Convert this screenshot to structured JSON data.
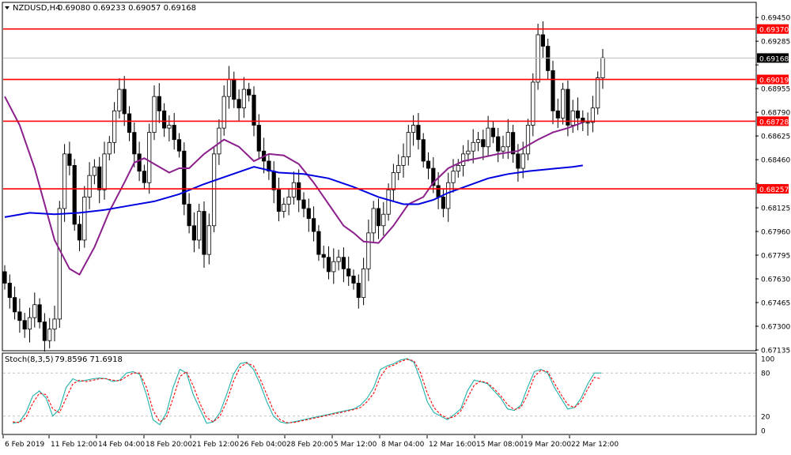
{
  "header": {
    "symbol_label": "NZDUSD,H4",
    "ohlc_text": "0.69080 0.69233 0.69057 0.69168"
  },
  "stoch_header": {
    "label": "Stoch(8,3,5)",
    "values_text": "79.8596 71.6918"
  },
  "colors": {
    "background": "#ffffff",
    "candle": "#000000",
    "support_resistance": "#ff0000",
    "ma_fast": "#8b1f8b",
    "ma_slow": "#0000e0",
    "stoch_main": "#20b2aa",
    "stoch_signal": "#ff0000",
    "grid": "#c0c0c0"
  },
  "chart_data": [
    {
      "type": "candlestick",
      "title": "NZDUSD,H4",
      "ohlc_last": {
        "open": 0.6908,
        "high": 0.69233,
        "low": 0.69057,
        "close": 0.69168
      },
      "ylim": [
        0.67135,
        0.6955
      ],
      "y_ticks": [
        "0.69450",
        "0.69285",
        "0.69120",
        "0.68955",
        "0.68790",
        "0.68625",
        "0.68460",
        "0.68295",
        "0.68125",
        "0.67960",
        "0.67795",
        "0.67630",
        "0.67465",
        "0.67300",
        "0.67135"
      ],
      "horizontal_lines": [
        {
          "label": "0.69370",
          "value": 0.6937
        },
        {
          "label": "0.69019",
          "value": 0.69019
        },
        {
          "label": "0.68728",
          "value": 0.68728
        },
        {
          "label": "0.68257",
          "value": 0.68257
        }
      ],
      "current_price": {
        "label": "0.69168",
        "value": 0.69168
      },
      "x_labels": [
        "6 Feb 2019",
        "11 Feb 12:00",
        "14 Feb 04:00",
        "18 Feb 20:00",
        "21 Feb 12:00",
        "26 Feb 04:00",
        "28 Feb 20:00",
        "5 Mar 12:00",
        "8 Mar 04:00",
        "12 Mar 16:00",
        "15 Mar 08:00",
        "19 Mar 20:00",
        "22 Mar 12:00"
      ],
      "close_path": [
        0.676,
        0.675,
        0.674,
        0.6734,
        0.6728,
        0.6736,
        0.6745,
        0.6733,
        0.672,
        0.6728,
        0.6735,
        0.6812,
        0.685,
        0.6842,
        0.6801,
        0.679,
        0.682,
        0.6835,
        0.6841,
        0.6825,
        0.685,
        0.6858,
        0.688,
        0.6895,
        0.6878,
        0.6865,
        0.685,
        0.6838,
        0.683,
        0.6865,
        0.689,
        0.688,
        0.6868,
        0.687,
        0.686,
        0.6852,
        0.6815,
        0.68,
        0.679,
        0.681,
        0.678,
        0.68,
        0.685,
        0.6868,
        0.689,
        0.6902,
        0.6888,
        0.6882,
        0.6895,
        0.6891,
        0.687,
        0.6852,
        0.6845,
        0.6838,
        0.6825,
        0.681,
        0.6815,
        0.682,
        0.683,
        0.6818,
        0.6812,
        0.6805,
        0.6796,
        0.678,
        0.6778,
        0.6768,
        0.6775,
        0.6778,
        0.677,
        0.6765,
        0.676,
        0.675,
        0.677,
        0.6795,
        0.6812,
        0.68,
        0.6808,
        0.6825,
        0.6837,
        0.6842,
        0.6848,
        0.6865,
        0.687,
        0.686,
        0.6845,
        0.684,
        0.6828,
        0.682,
        0.6812,
        0.683,
        0.6838,
        0.6842,
        0.685,
        0.6852,
        0.6858,
        0.686,
        0.6855,
        0.6868,
        0.6862,
        0.6852,
        0.6855,
        0.6865,
        0.685,
        0.684,
        0.685,
        0.687,
        0.69,
        0.6933,
        0.6925,
        0.6908,
        0.688,
        0.6875,
        0.6895,
        0.687,
        0.688,
        0.6875,
        0.6872,
        0.6872,
        0.6882,
        0.6903,
        0.6917
      ],
      "overlays": [
        {
          "name": "",
          "color": "#8b1f8b",
          "points": [
            [
              0,
              0.689
            ],
            [
              3,
              0.687
            ],
            [
              6,
              0.684
            ],
            [
              10,
              0.679
            ],
            [
              13,
              0.677
            ],
            [
              15,
              0.6766
            ],
            [
              18,
              0.6785
            ],
            [
              21,
              0.681
            ],
            [
              24,
              0.683
            ],
            [
              26,
              0.6844
            ],
            [
              28,
              0.6847
            ],
            [
              31,
              0.6841
            ],
            [
              33,
              0.6837
            ],
            [
              35,
              0.684
            ],
            [
              37,
              0.684
            ],
            [
              40,
              0.685
            ],
            [
              42,
              0.6855
            ],
            [
              44,
              0.686
            ],
            [
              47,
              0.6855
            ],
            [
              50,
              0.6845
            ],
            [
              53,
              0.685
            ],
            [
              56,
              0.6849
            ],
            [
              59,
              0.6843
            ],
            [
              62,
              0.683
            ],
            [
              65,
              0.6815
            ],
            [
              68,
              0.68
            ],
            [
              70,
              0.6795
            ],
            [
              72,
              0.6789
            ],
            [
              75,
              0.6788
            ],
            [
              78,
              0.68
            ],
            [
              81,
              0.6815
            ],
            [
              84,
              0.682
            ],
            [
              86,
              0.683
            ],
            [
              89,
              0.684
            ],
            [
              92,
              0.6845
            ],
            [
              95,
              0.6847
            ],
            [
              99,
              0.685
            ],
            [
              103,
              0.6852
            ],
            [
              107,
              0.686
            ],
            [
              110,
              0.6865
            ],
            [
              113,
              0.6868
            ],
            [
              116,
              0.6872
            ]
          ]
        },
        {
          "name": "",
          "color": "#0000e0",
          "points": [
            [
              0,
              0.6806
            ],
            [
              5,
              0.6809
            ],
            [
              10,
              0.6808
            ],
            [
              15,
              0.6809
            ],
            [
              20,
              0.6811
            ],
            [
              25,
              0.6814
            ],
            [
              30,
              0.6817
            ],
            [
              35,
              0.6822
            ],
            [
              40,
              0.6829
            ],
            [
              45,
              0.6835
            ],
            [
              50,
              0.6841
            ],
            [
              55,
              0.6837
            ],
            [
              60,
              0.6836
            ],
            [
              65,
              0.6833
            ],
            [
              70,
              0.6827
            ],
            [
              75,
              0.682
            ],
            [
              80,
              0.6815
            ],
            [
              83,
              0.6815
            ],
            [
              86,
              0.6818
            ],
            [
              89,
              0.6823
            ],
            [
              93,
              0.6828
            ],
            [
              97,
              0.6833
            ],
            [
              101,
              0.6836
            ],
            [
              105,
              0.6838
            ],
            [
              108,
              0.6839
            ],
            [
              111,
              0.684
            ],
            [
              114,
              0.6841
            ],
            [
              116,
              0.6842
            ]
          ]
        }
      ]
    },
    {
      "type": "line",
      "title": "Stoch(8,3,5)",
      "values_text": "79.8596 71.6918",
      "ylim": [
        0,
        100
      ],
      "y_ticks": [
        "100",
        "80",
        "20",
        "0"
      ],
      "levels": [
        20,
        80
      ],
      "series": [
        {
          "name": "",
          "color": "#20b2aa",
          "values": [
            10,
            12,
            25,
            48,
            55,
            45,
            20,
            30,
            60,
            72,
            68,
            70,
            72,
            73,
            72,
            68,
            70,
            80,
            82,
            78,
            50,
            15,
            8,
            25,
            60,
            85,
            80,
            50,
            30,
            10,
            12,
            25,
            50,
            78,
            93,
            95,
            85,
            65,
            40,
            20,
            12,
            10,
            12,
            14,
            16,
            18,
            20,
            22,
            24,
            26,
            28,
            30,
            35,
            45,
            60,
            85,
            90,
            93,
            98,
            100,
            95,
            70,
            40,
            25,
            20,
            15,
            22,
            30,
            55,
            70,
            68,
            65,
            55,
            45,
            30,
            28,
            35,
            60,
            82,
            85,
            80,
            60,
            45,
            30,
            32,
            45,
            65,
            80,
            80
          ]
        },
        {
          "name": "",
          "color": "#ff0000",
          "values": [
            12,
            11,
            18,
            38,
            52,
            50,
            30,
            25,
            45,
            65,
            70,
            68,
            70,
            72,
            72,
            70,
            69,
            75,
            80,
            80,
            60,
            28,
            12,
            18,
            45,
            75,
            82,
            62,
            38,
            18,
            12,
            20,
            40,
            68,
            88,
            94,
            90,
            72,
            50,
            28,
            15,
            11,
            11,
            13,
            15,
            17,
            19,
            21,
            23,
            25,
            27,
            29,
            32,
            40,
            52,
            75,
            88,
            91,
            96,
            99,
            97,
            80,
            52,
            32,
            22,
            17,
            19,
            27,
            45,
            63,
            69,
            66,
            58,
            48,
            36,
            29,
            32,
            50,
            75,
            84,
            82,
            66,
            50,
            36,
            32,
            40,
            58,
            74,
            72
          ]
        }
      ]
    }
  ]
}
